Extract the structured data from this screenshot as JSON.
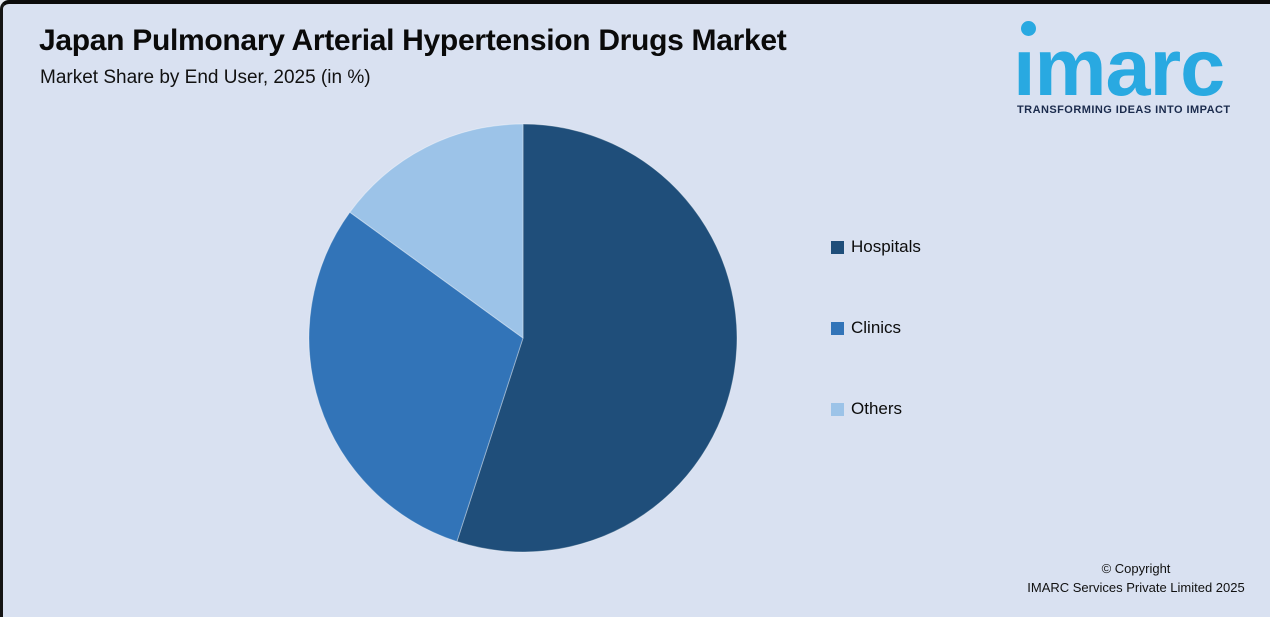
{
  "canvas": {
    "background": "#D9E1F1",
    "border_color": "#0B0B0B"
  },
  "header": {
    "title": "Japan Pulmonary Arterial Hypertension Drugs Market",
    "subtitle": "Market Share by End User, 2025 (in %)"
  },
  "logo": {
    "brand_display": "ımarc",
    "brand_name": "imarc",
    "tagline": "TRANSFORMING IDEAS INTO IMPACT",
    "brand_color": "#29A9E1",
    "tagline_color": "#1B2B4D"
  },
  "chart_data": {
    "type": "pie",
    "title": "Japan Pulmonary Arterial Hypertension Drugs Market",
    "subtitle": "Market Share by End User, 2025 (in %)",
    "unit": "%",
    "categories": [
      "Hospitals",
      "Clinics",
      "Others"
    ],
    "values": [
      55,
      30,
      15
    ],
    "colors": [
      "#1F4E7A",
      "#3274B8",
      "#9CC3E8"
    ],
    "start_angle_deg": 0,
    "direction": "clockwise",
    "legend_position": "right",
    "data_labels_shown": false
  },
  "footer": {
    "copyright_line1": "© Copyright",
    "copyright_line2": "IMARC Services Private Limited 2025"
  }
}
